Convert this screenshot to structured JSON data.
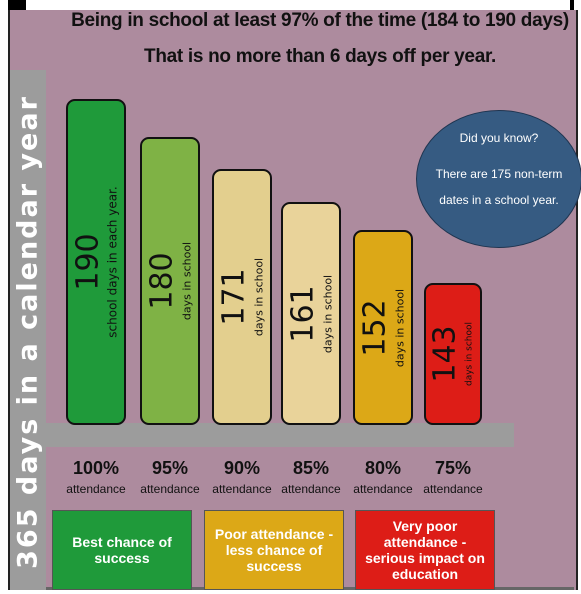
{
  "header": {
    "title_line1": "Being in school at least 97% of the time (184 to 190 days)",
    "title_line2": "That is no more than 6 days off per year."
  },
  "side_label": "365 days in a calendar year",
  "callout": {
    "question": "Did you know?",
    "fact": "There are 175 non-term dates in a school year."
  },
  "colors": {
    "background": "#ad8b9e",
    "sidebar": "#9c9c9c",
    "callout": "#365b82"
  },
  "chart_data": {
    "type": "bar",
    "categories": [
      "100%",
      "95%",
      "90%",
      "85%",
      "80%",
      "75%"
    ],
    "values": [
      190,
      180,
      171,
      161,
      152,
      143
    ],
    "value_labels": [
      "school days in each year.",
      "days in school",
      "days in school",
      "days in school",
      "days in school",
      "days in school"
    ],
    "category_sublabel": "attendance",
    "bar_colors": [
      "#1f9a3a",
      "#7fb245",
      "#e3cf8e",
      "#e9d39a",
      "#dca817",
      "#dd1d17"
    ]
  },
  "bands": [
    {
      "label": "Best chance of success",
      "color": "#1f9a3a",
      "text_color": "#ffffff"
    },
    {
      "label": "Poor attendance - less chance of success",
      "color": "#dca817",
      "text_color": "#ffffff"
    },
    {
      "label": "Very poor attendance - serious impact on education",
      "color": "#dd1d17",
      "text_color": "#ffffff"
    }
  ]
}
